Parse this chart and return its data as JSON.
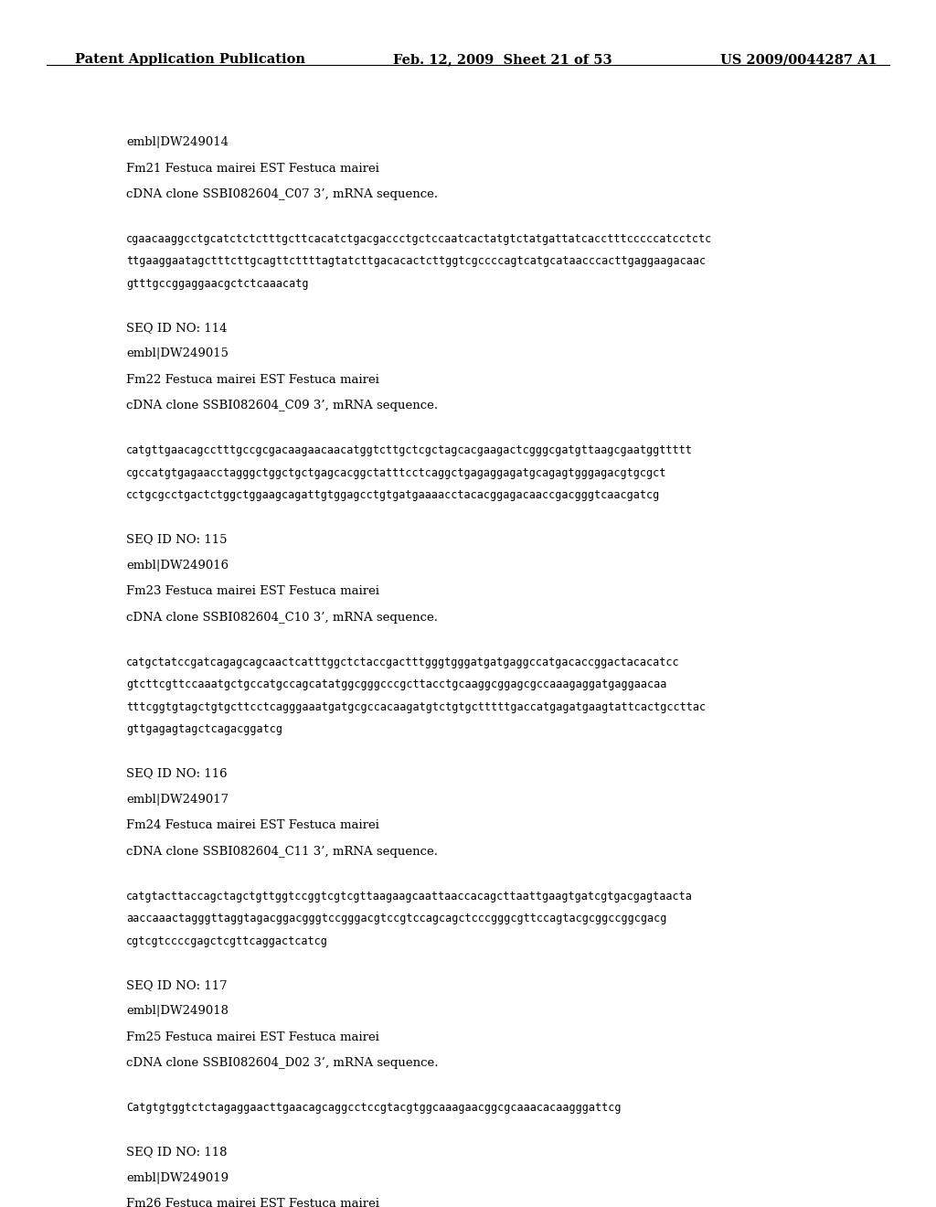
{
  "header_left": "Patent Application Publication",
  "header_mid": "Feb. 12, 2009  Sheet 21 of 53",
  "header_right": "US 2009/0044287 A1",
  "background_color": "#ffffff",
  "text_color": "#000000",
  "blocks": [
    {
      "type": "meta",
      "lines": [
        "embl|DW249014",
        "Fm21 Festuca mairei EST Festuca mairei",
        "cDNA clone SSBI082604_C07 3’, mRNA sequence."
      ]
    },
    {
      "type": "sequence",
      "lines": [
        "cgaacaaggcctgcatctctctttgcttcacatctgacgaccctgctccaatcactatgtctatgattatcacctttcccccatcctctc",
        "ttgaaggaatagctttcttgcagttcttttagtatcttgacacactcttggtcgccccagtcatgcataacccacttgaggaagacaac",
        "gtttgccggaggaacgctctcaaacatg"
      ]
    },
    {
      "type": "meta",
      "lines": [
        "SEQ ID NO: 114",
        "embl|DW249015",
        "Fm22 Festuca mairei EST Festuca mairei",
        "cDNA clone SSBI082604_C09 3’, mRNA sequence."
      ]
    },
    {
      "type": "sequence",
      "lines": [
        "catgttgaacagcctttgccgcgacaagaacaacatggtcttgctcgctagcacgaagactcgggcgatgttaagcgaatggttttt",
        "cgccatgtgagaacctagggctggctgctgagcacggctatttcctcaggctgagaggagatgcagagtgggagacgtgcgct",
        "cctgcgcctgactctggctggaagcagattgtggagcctgtgatgaaaacctacacggagacaaccgacgggtcaacgatcg"
      ]
    },
    {
      "type": "meta",
      "lines": [
        "SEQ ID NO: 115",
        "embl|DW249016",
        "Fm23 Festuca mairei EST Festuca mairei",
        "cDNA clone SSBI082604_C10 3’, mRNA sequence."
      ]
    },
    {
      "type": "sequence",
      "lines": [
        "catgctatccgatcagagcagcaactcatttggctctaccgactttgggtgggatgatgaggccatgacaccggactacacatcc",
        "gtcttcgttccaaatgctgccatgccagcatatggcgggcccgcttacctgcaaggcggagcgccaaagaggatgaggaacaa",
        "tttcggtgtagctgtgcttcctcagggaaatgatgcgccacaagatgtctgtgctttttgaccatgagatgaagtattcactgccttac",
        "gttgagagtagctcagacggatcg"
      ]
    },
    {
      "type": "meta",
      "lines": [
        "SEQ ID NO: 116",
        "embl|DW249017",
        "Fm24 Festuca mairei EST Festuca mairei",
        "cDNA clone SSBI082604_C11 3’, mRNA sequence."
      ]
    },
    {
      "type": "sequence",
      "lines": [
        "catgtacttaccagctagctgttggtccggtcgtcgttaagaagcaattaaccacagcttaattgaagtgatcgtgacgagtaacta",
        "aaccaaactagggttaggtagacggacgggtccgggacgtccgtccagcagctcccgggcgttccagtacgcggccggcgacg",
        "cgtcgtccccgagctcgttcaggactcatcg"
      ]
    },
    {
      "type": "meta",
      "lines": [
        "SEQ ID NO: 117",
        "embl|DW249018",
        "Fm25 Festuca mairei EST Festuca mairei",
        "cDNA clone SSBI082604_D02 3’, mRNA sequence."
      ]
    },
    {
      "type": "sequence",
      "lines": [
        "Catgtgtggtctctagaggaacttgaacagcaggcctccgtacgtggcaaagaacggcgcaaacacaagggattcg"
      ]
    },
    {
      "type": "meta",
      "lines": [
        "SEQ ID NO: 118",
        "embl|DW249019",
        "Fm26 Festuca mairei EST Festuca mairei"
      ]
    }
  ]
}
